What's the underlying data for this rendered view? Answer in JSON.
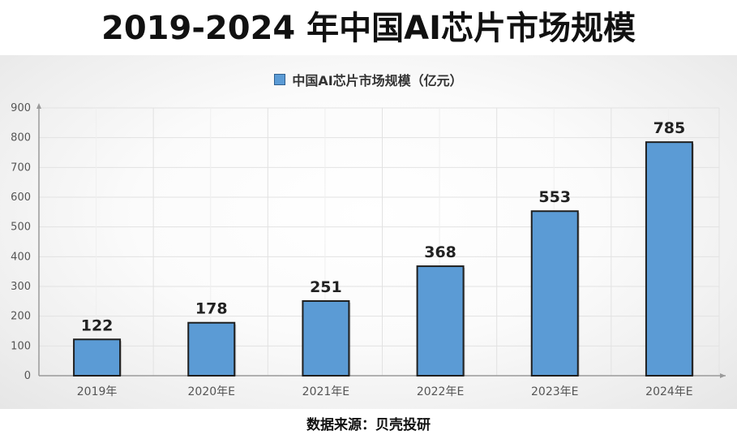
{
  "chart_data": {
    "type": "bar",
    "title": "2019-2024 年中国AI芯片市场规模",
    "categories": [
      "2019年",
      "2020年E",
      "2021年E",
      "2022年E",
      "2023年E",
      "2024年E"
    ],
    "series": [
      {
        "name": "中国AI芯片市场规模（亿元）",
        "values": [
          122,
          178,
          251,
          368,
          553,
          785
        ]
      }
    ],
    "data_labels": [
      "122",
      "178",
      "251",
      "368",
      "553",
      "785"
    ],
    "y_ticks": [
      "0",
      "100",
      "200",
      "300",
      "400",
      "500",
      "600",
      "700",
      "800",
      "900"
    ],
    "ylim": [
      0,
      900
    ],
    "grid": true,
    "legend_position": "top-center",
    "colors": {
      "bar_fill": "#5b9bd5",
      "bar_stroke": "#1f1f1f",
      "grid": "#e2e2e2",
      "axis": "#9a9a9a"
    }
  },
  "source_note": "数据来源：贝壳投研"
}
